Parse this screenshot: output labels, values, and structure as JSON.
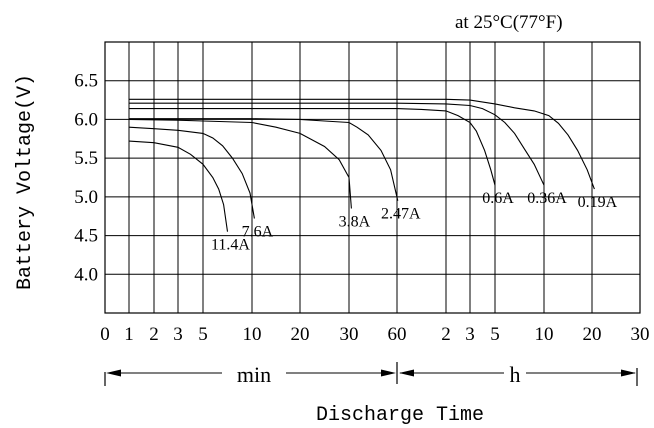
{
  "chart_data": {
    "type": "line",
    "title": "at 25°C(77°F)",
    "xlabel": "Discharge Time",
    "ylabel": "Battery Voltage(V)",
    "ylim": [
      3.5,
      7.0
    ],
    "y_ticks": [
      "6.5",
      "6.0",
      "5.5",
      "5.0",
      "4.5",
      "4.0"
    ],
    "x_ticks": [
      "0",
      "1",
      "2",
      "3",
      "5",
      "10",
      "20",
      "30",
      "60",
      "2",
      "3",
      "5",
      "10",
      "20",
      "30"
    ],
    "x_tick_minutes": [
      0,
      1,
      2,
      3,
      5,
      10,
      20,
      30,
      60,
      120,
      180,
      300,
      600,
      1200,
      1800
    ],
    "x_unit_min": "min",
    "x_unit_h": "h",
    "grid": true,
    "series": [
      {
        "name": "11.4A",
        "x": [
          1,
          2,
          3,
          4,
          5,
          6,
          6.6,
          7.1,
          7.5
        ],
        "y": [
          5.72,
          5.7,
          5.64,
          5.55,
          5.42,
          5.25,
          5.1,
          4.9,
          4.55
        ]
      },
      {
        "name": "7.6A",
        "x": [
          1,
          2,
          3,
          5,
          6,
          7,
          8,
          9,
          9.8,
          10.5
        ],
        "y": [
          5.9,
          5.88,
          5.86,
          5.82,
          5.76,
          5.66,
          5.5,
          5.3,
          5.05,
          4.72
        ]
      },
      {
        "name": "3.8A",
        "x": [
          1,
          3,
          5,
          10,
          15,
          20,
          25,
          28,
          30,
          31.5
        ],
        "y": [
          6.0,
          5.99,
          5.98,
          5.96,
          5.9,
          5.82,
          5.65,
          5.48,
          5.25,
          4.85
        ]
      },
      {
        "name": "2.47A",
        "x": [
          1,
          5,
          10,
          20,
          25,
          30,
          35,
          42,
          50,
          56,
          61
        ],
        "y": [
          6.01,
          6.01,
          6.01,
          6.0,
          5.98,
          5.96,
          5.9,
          5.8,
          5.6,
          5.35,
          4.95
        ]
      },
      {
        "name": "0.6A",
        "x": [
          1,
          10,
          30,
          60,
          90,
          120,
          150,
          180,
          210,
          250,
          280,
          300
        ],
        "y": [
          6.14,
          6.14,
          6.14,
          6.14,
          6.13,
          6.11,
          6.05,
          5.96,
          5.85,
          5.6,
          5.35,
          5.15
        ]
      },
      {
        "name": "0.36A",
        "x": [
          1,
          10,
          30,
          60,
          120,
          180,
          240,
          300,
          360,
          420,
          480,
          540,
          600
        ],
        "y": [
          6.21,
          6.21,
          6.21,
          6.21,
          6.2,
          6.18,
          6.14,
          6.06,
          5.96,
          5.82,
          5.62,
          5.42,
          5.15
        ]
      },
      {
        "name": "0.19A",
        "x": [
          1,
          10,
          30,
          60,
          120,
          180,
          300,
          420,
          540,
          660,
          780,
          900,
          1020,
          1140,
          1230
        ],
        "y": [
          6.26,
          6.26,
          6.26,
          6.26,
          6.26,
          6.25,
          6.2,
          6.15,
          6.11,
          6.05,
          5.95,
          5.8,
          5.6,
          5.35,
          5.1
        ]
      }
    ]
  }
}
